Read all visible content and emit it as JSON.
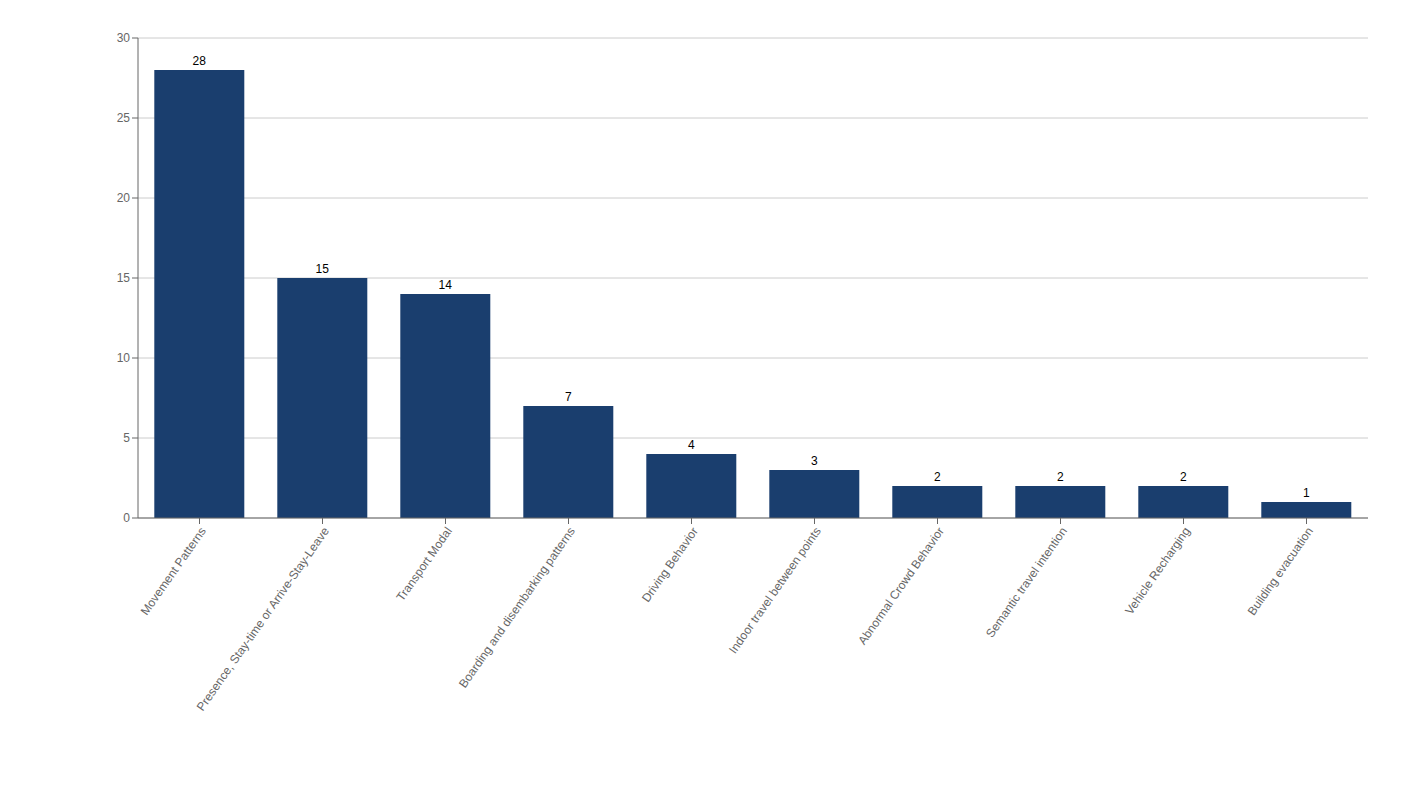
{
  "chart_data": {
    "type": "bar",
    "categories": [
      "Movement Patterns",
      "Presence, Stay-time or Arrive-Stay-Leave",
      "Transport Modal",
      "Boarding and disembarking patterns",
      "Driving Behavior",
      "Indoor travel between points",
      "Abnormal Crowd Behavior",
      "Semantic travel intention",
      "Vehicle Recharging",
      "Building evacuation"
    ],
    "values": [
      28,
      15,
      14,
      7,
      4,
      3,
      2,
      2,
      2,
      1
    ],
    "color": "#1a3e6e",
    "ylim": [
      0,
      30
    ],
    "yticks": [
      0,
      5,
      10,
      15,
      20,
      25,
      30
    ],
    "grid": true,
    "data_labels": true
  }
}
